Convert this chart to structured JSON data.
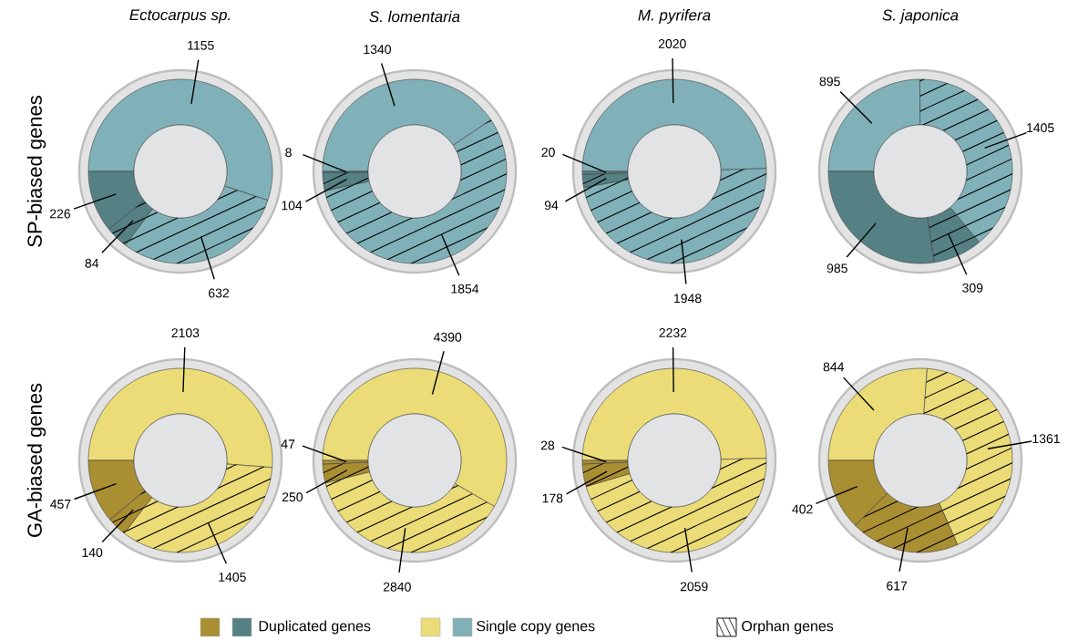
{
  "chart_data": [
    {
      "type": "donut",
      "title": "Ectocarpus sp.",
      "ylabel": "SP-biased genes",
      "categories": [
        null,
        null,
        null,
        null
      ],
      "values": [
        1155,
        632,
        84,
        226
      ],
      "colors": [
        "#80b1b8",
        "#80b1b8",
        "#558184",
        "#558184"
      ],
      "data_labels": true
    },
    {
      "type": "donut",
      "title": "S. lomentaria",
      "categories": [
        null,
        null,
        null,
        null
      ],
      "values": [
        1340,
        1854,
        104,
        8
      ],
      "colors": [
        "#80b1b8",
        "#80b1b8",
        "#558184",
        "#558184"
      ],
      "data_labels": true
    },
    {
      "type": "donut",
      "title": "M. pyrifera",
      "categories": [
        null,
        null,
        null,
        null
      ],
      "values": [
        2020,
        1948,
        94,
        20
      ],
      "colors": [
        "#80b1b8",
        "#80b1b8",
        "#558184",
        "#558184"
      ],
      "data_labels": true
    },
    {
      "type": "donut",
      "title": "S. japonica",
      "categories": [
        null,
        null,
        null,
        null
      ],
      "values": [
        895,
        1405,
        309,
        985
      ],
      "colors": [
        "#80b1b8",
        "#80b1b8",
        "#558184",
        "#558184"
      ],
      "data_labels": true
    },
    {
      "type": "donut",
      "ylabel": "GA-biased genes",
      "categories": [
        null,
        null,
        null,
        null
      ],
      "values": [
        2103,
        1405,
        140,
        457
      ],
      "colors": [
        "#ebdc78",
        "#ebdc78",
        "#a98e32",
        "#a98e32"
      ],
      "data_labels": true
    },
    {
      "type": "donut",
      "categories": [
        null,
        null,
        null,
        null
      ],
      "values": [
        4390,
        2840,
        250,
        47
      ],
      "colors": [
        "#ebdc78",
        "#ebdc78",
        "#a98e32",
        "#a98e32"
      ],
      "data_labels": true
    },
    {
      "type": "donut",
      "categories": [
        null,
        null,
        null,
        null
      ],
      "values": [
        2232,
        2059,
        178,
        28
      ],
      "colors": [
        "#ebdc78",
        "#ebdc78",
        "#a98e32",
        "#a98e32"
      ],
      "data_labels": true
    },
    {
      "type": "donut",
      "categories": [
        null,
        null,
        null,
        null
      ],
      "values": [
        844,
        1361,
        617,
        402
      ],
      "colors": [
        "#ebdc78",
        "#ebdc78",
        "#a98e32",
        "#a98e32"
      ],
      "data_labels": true
    },
    {
      "type": "other",
      "annotations": [
        "Duplicated genes",
        "Single copy genes",
        "Orphan genes"
      ],
      "colors": [
        "#a98e32",
        "#558184",
        "#ebdc78",
        "#80b1b8",
        "#ffffff"
      ]
    }
  ]
}
